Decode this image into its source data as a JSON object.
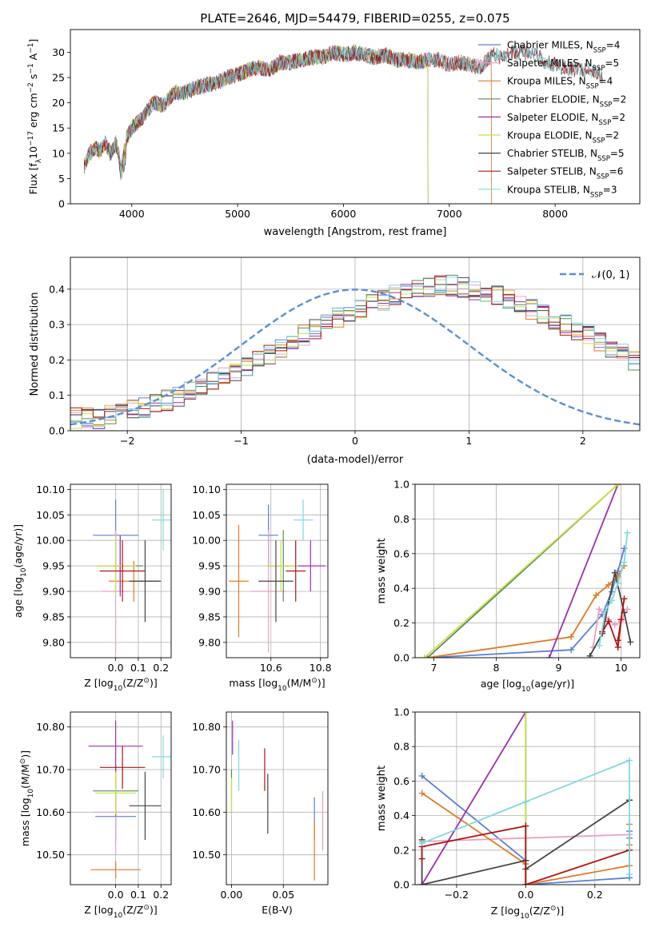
{
  "colors": {
    "chabrier_miles": "#5b7fd6",
    "salpeter_miles": "#e8a0c8",
    "kroupa_miles": "#e07b22",
    "chabrier_elodie": "#5a8a5a",
    "salpeter_elodie": "#9b30b0",
    "kroupa_elodie": "#c9e04a",
    "chabrier_stelib": "#444444",
    "salpeter_stelib": "#b01414",
    "kroupa_stelib": "#7fd8e0",
    "gaussian": "#5b8fd6",
    "grid": "#b0b0b0"
  },
  "chart_data": [
    {
      "id": "spectrum",
      "type": "line",
      "title": "PLATE=2646, MJD=54479, FIBERID=0255, z=0.075",
      "xlabel": "wavelength [Angstrom, rest frame]",
      "ylabel_parts": [
        "Flux [f",
        "λ",
        "10",
        "−17",
        " erg cm",
        "−2",
        " s",
        "−1",
        " A",
        "−1",
        "]"
      ],
      "xlim": [
        3420,
        8800
      ],
      "ylim": [
        0,
        34.5
      ],
      "xticks": [
        4000,
        5000,
        6000,
        7000,
        8000
      ],
      "yticks": [
        0,
        5,
        10,
        15,
        20,
        25,
        30
      ],
      "x": [
        3550,
        3600,
        3650,
        3700,
        3750,
        3800,
        3850,
        3900,
        3950,
        4000,
        4100,
        4200,
        4300,
        4400,
        4500,
        4600,
        4700,
        4800,
        4900,
        5000,
        5100,
        5200,
        5300,
        5400,
        5500,
        5600,
        5700,
        5800,
        5900,
        6000,
        6100,
        6200,
        6300,
        6400,
        6500,
        6600,
        6700,
        6800,
        6900,
        7000,
        7100,
        7200,
        7300,
        7400,
        7500,
        7600,
        7700,
        7800,
        7900,
        8000,
        8100,
        8200,
        8300,
        8400,
        8450
      ],
      "y": [
        7.5,
        10,
        11,
        10.5,
        12,
        10,
        12,
        8,
        13,
        15,
        17,
        20,
        19.5,
        22,
        22,
        23,
        23.5,
        24,
        25,
        25.5,
        26.5,
        27,
        26.5,
        28,
        28,
        28.5,
        29,
        29,
        30,
        29.5,
        30,
        29.5,
        29,
        29.5,
        28.5,
        28.5,
        28,
        28.5,
        28.5,
        27.5,
        28,
        27.5,
        27,
        29.5,
        29,
        30,
        30,
        30,
        28,
        27.5,
        27,
        26.5,
        26.5,
        26,
        25
      ],
      "series": [
        {
          "name": "Chabrier MILES, N",
          "sub": "SSP",
          "tail": "=4",
          "color_key": "chabrier_miles",
          "xmax": 7400
        },
        {
          "name": "Salpeter MILES, N",
          "sub": "SSP",
          "tail": "=5",
          "color_key": "salpeter_miles",
          "xmax": 7400
        },
        {
          "name": "Kroupa MILES, N",
          "sub": "SSP",
          "tail": "=4",
          "color_key": "kroupa_miles",
          "xmax": 7400
        },
        {
          "name": "Chabrier ELODIE, N",
          "sub": "SSP",
          "tail": "=2",
          "color_key": "chabrier_elodie",
          "xmax": 6800
        },
        {
          "name": "Salpeter ELODIE, N",
          "sub": "SSP",
          "tail": "=2",
          "color_key": "salpeter_elodie",
          "xmax": 6800
        },
        {
          "name": "Kroupa ELODIE, N",
          "sub": "SSP",
          "tail": "=2",
          "color_key": "kroupa_elodie",
          "xmax": 6800
        },
        {
          "name": "Chabrier STELIB, N",
          "sub": "SSP",
          "tail": "=5",
          "color_key": "chabrier_stelib",
          "xmax": 8450
        },
        {
          "name": "Salpeter STELIB, N",
          "sub": "SSP",
          "tail": "=6",
          "color_key": "salpeter_stelib",
          "xmax": 8450
        },
        {
          "name": "Kroupa STELIB, N",
          "sub": "SSP",
          "tail": "=3",
          "color_key": "kroupa_stelib",
          "xmax": 8450
        }
      ],
      "grid": false,
      "legend": "right"
    },
    {
      "id": "residuals",
      "type": "histogram",
      "xlabel": "(data-model)/error",
      "ylabel": "Normed distribution",
      "xlim": [
        -2.5,
        2.5
      ],
      "ylim": [
        0,
        0.49
      ],
      "xticks": [
        -2,
        -1,
        0,
        1,
        2
      ],
      "yticks": [
        0.0,
        0.1,
        0.2,
        0.3,
        0.4
      ],
      "bin_width": 0.1,
      "bins_from": -2.5,
      "values": [
        0.035,
        0.038,
        0.032,
        0.045,
        0.05,
        0.06,
        0.065,
        0.075,
        0.085,
        0.095,
        0.11,
        0.12,
        0.14,
        0.15,
        0.17,
        0.185,
        0.2,
        0.215,
        0.235,
        0.255,
        0.27,
        0.285,
        0.3,
        0.32,
        0.33,
        0.345,
        0.36,
        0.37,
        0.385,
        0.395,
        0.4,
        0.405,
        0.41,
        0.41,
        0.405,
        0.4,
        0.395,
        0.385,
        0.375,
        0.36,
        0.345,
        0.33,
        0.315,
        0.3,
        0.285,
        0.27,
        0.255,
        0.235,
        0.22,
        0.2
      ],
      "legend_label": "𝒩(0, 1)",
      "grid": true,
      "legend": "upper right"
    },
    {
      "id": "age_vs_z",
      "type": "scatter",
      "xlabel_parts": [
        "Z [log",
        "10",
        "(Z/Z",
        "⊙",
        ")]"
      ],
      "ylabel_parts": [
        "age  [log",
        "10",
        "(age/yr)]"
      ],
      "xlim": [
        -0.2,
        0.245
      ],
      "ylim": [
        9.77,
        10.11
      ],
      "xticks": [
        0.0,
        0.1,
        0.2
      ],
      "yticks": [
        9.8,
        9.85,
        9.9,
        9.95,
        10.0,
        10.05,
        10.1
      ],
      "points": [
        {
          "color_key": "chabrier_miles",
          "x": 0.0,
          "y": 10.01,
          "xerr": 0.1,
          "yerr": 0.07
        },
        {
          "color_key": "salpeter_miles",
          "x": 0.0,
          "y": 9.9,
          "xerr": 0.06,
          "yerr": 0.12
        },
        {
          "color_key": "kroupa_miles",
          "x": 0.08,
          "y": 9.92,
          "xerr": 0.11,
          "yerr": 0.04
        },
        {
          "color_key": "chabrier_elodie",
          "x": 0.02,
          "y": 9.95,
          "xerr": 0.1,
          "yerr": 0.05
        },
        {
          "color_key": "salpeter_elodie",
          "x": 0.02,
          "y": 9.95,
          "xerr": 0.04,
          "yerr": 0.06
        },
        {
          "color_key": "kroupa_elodie",
          "x": 0.0,
          "y": 9.95,
          "xerr": 0.09,
          "yerr": 0.06
        },
        {
          "color_key": "chabrier_stelib",
          "x": 0.13,
          "y": 9.92,
          "xerr": 0.07,
          "yerr": 0.08
        },
        {
          "color_key": "salpeter_stelib",
          "x": 0.03,
          "y": 9.94,
          "xerr": 0.1,
          "yerr": 0.06
        },
        {
          "color_key": "kroupa_stelib",
          "x": 0.21,
          "y": 10.04,
          "xerr": 0.05,
          "yerr": 0.06
        }
      ],
      "grid": true
    },
    {
      "id": "age_vs_mass",
      "type": "scatter",
      "xlabel_parts": [
        "mass [log",
        "10",
        "(M/M",
        "⊙",
        ")]"
      ],
      "ylabel_parts": [],
      "xlim": [
        10.42,
        10.83
      ],
      "ylim": [
        9.77,
        10.11
      ],
      "xticks": [
        10.6,
        10.8
      ],
      "yticks": [
        9.8,
        9.85,
        9.9,
        9.95,
        10.0,
        10.05,
        10.1
      ],
      "points": [
        {
          "color_key": "chabrier_miles",
          "x": 10.59,
          "y": 10.01,
          "xerr": 0.04,
          "yerr": 0.06
        },
        {
          "color_key": "salpeter_miles",
          "x": 10.59,
          "y": 9.9,
          "xerr": 0.07,
          "yerr": 0.12
        },
        {
          "color_key": "kroupa_miles",
          "x": 10.47,
          "y": 9.92,
          "xerr": 0.04,
          "yerr": 0.11
        },
        {
          "color_key": "chabrier_elodie",
          "x": 10.65,
          "y": 9.95,
          "xerr": 0.06,
          "yerr": 0.07
        },
        {
          "color_key": "salpeter_elodie",
          "x": 10.76,
          "y": 9.95,
          "xerr": 0.06,
          "yerr": 0.05
        },
        {
          "color_key": "kroupa_elodie",
          "x": 10.64,
          "y": 9.95,
          "xerr": 0.07,
          "yerr": 0.05
        },
        {
          "color_key": "chabrier_stelib",
          "x": 10.62,
          "y": 9.92,
          "xerr": 0.07,
          "yerr": 0.08
        },
        {
          "color_key": "salpeter_stelib",
          "x": 10.7,
          "y": 9.94,
          "xerr": 0.04,
          "yerr": 0.06
        },
        {
          "color_key": "kroupa_stelib",
          "x": 10.73,
          "y": 10.04,
          "xerr": 0.04,
          "yerr": 0.04
        }
      ],
      "grid": true
    },
    {
      "id": "massweight_vs_age",
      "type": "line",
      "xlabel_parts": [
        "age  [log",
        "10",
        "(age/yr)]"
      ],
      "ylabel": "mass weight",
      "xlim": [
        6.7,
        10.3
      ],
      "ylim": [
        0,
        1.0
      ],
      "xticks": [
        7,
        8,
        9,
        10
      ],
      "yticks": [
        0.0,
        0.2,
        0.4,
        0.6,
        0.8,
        1.0
      ],
      "series": [
        {
          "color_key": "chabrier_miles",
          "x": [
            6.9,
            9.2,
            9.7,
            9.85,
            9.95,
            10.05
          ],
          "y": [
            0.0,
            0.045,
            0.25,
            0.38,
            0.5,
            0.63
          ]
        },
        {
          "color_key": "salpeter_miles",
          "x": [
            9.55,
            9.65,
            9.8,
            9.9,
            10.0,
            10.1
          ],
          "y": [
            0.06,
            0.28,
            0.22,
            0.19,
            0.21,
            0.28
          ]
        },
        {
          "color_key": "kroupa_miles",
          "x": [
            6.9,
            9.2,
            9.6,
            9.8,
            9.95,
            10.05
          ],
          "y": [
            0.0,
            0.12,
            0.36,
            0.42,
            0.47,
            0.53
          ]
        },
        {
          "color_key": "chabrier_elodie",
          "x": [
            6.9,
            9.95
          ],
          "y": [
            0.0,
            1.0
          ]
        },
        {
          "color_key": "salpeter_elodie",
          "x": [
            8.85,
            9.95
          ],
          "y": [
            0.0,
            1.0
          ]
        },
        {
          "color_key": "kroupa_elodie",
          "x": [
            6.85,
            9.95
          ],
          "y": [
            0.0,
            1.0
          ]
        },
        {
          "color_key": "chabrier_stelib",
          "x": [
            9.5,
            9.7,
            9.9,
            10.05,
            10.15
          ],
          "y": [
            0.01,
            0.14,
            0.49,
            0.26,
            0.09
          ]
        },
        {
          "color_key": "salpeter_stelib",
          "x": [
            9.7,
            9.8,
            9.95,
            10.0,
            10.05,
            9.95
          ],
          "y": [
            0.15,
            0.21,
            0.06,
            0.22,
            0.34,
            0.1
          ]
        },
        {
          "color_key": "kroupa_stelib",
          "x": [
            9.65,
            9.75,
            9.85,
            9.95,
            10.05,
            10.1
          ],
          "y": [
            0.07,
            0.27,
            0.33,
            0.43,
            0.55,
            0.72
          ]
        }
      ],
      "grid": true
    },
    {
      "id": "mass_vs_z",
      "type": "scatter",
      "xlabel_parts": [
        "Z [log",
        "10",
        "(Z/Z",
        "⊙",
        ")]"
      ],
      "ylabel_parts": [
        "mass [log",
        "10",
        "(M/M",
        "⊙",
        ")]"
      ],
      "xlim": [
        -0.2,
        0.245
      ],
      "ylim": [
        10.43,
        10.835
      ],
      "xticks": [
        0.0,
        0.1,
        0.2
      ],
      "yticks": [
        10.5,
        10.6,
        10.7,
        10.8
      ],
      "points": [
        {
          "color_key": "chabrier_miles",
          "x": 0.0,
          "y": 10.59,
          "xerr": 0.09,
          "yerr": 0.06
        },
        {
          "color_key": "salpeter_miles",
          "x": 0.0,
          "y": 10.6,
          "xerr": 0.1,
          "yerr": 0.1
        },
        {
          "color_key": "kroupa_miles",
          "x": 0.0,
          "y": 10.465,
          "xerr": 0.11,
          "yerr": 0.02
        },
        {
          "color_key": "chabrier_elodie",
          "x": 0.0,
          "y": 10.65,
          "xerr": 0.1,
          "yerr": 0.06
        },
        {
          "color_key": "salpeter_elodie",
          "x": 0.0,
          "y": 10.755,
          "xerr": 0.12,
          "yerr": 0.06
        },
        {
          "color_key": "kroupa_elodie",
          "x": 0.0,
          "y": 10.645,
          "xerr": 0.09,
          "yerr": 0.05
        },
        {
          "color_key": "chabrier_stelib",
          "x": 0.13,
          "y": 10.615,
          "xerr": 0.07,
          "yerr": 0.08
        },
        {
          "color_key": "salpeter_stelib",
          "x": 0.03,
          "y": 10.705,
          "xerr": 0.1,
          "yerr": 0.05
        },
        {
          "color_key": "kroupa_stelib",
          "x": 0.21,
          "y": 10.73,
          "xerr": 0.05,
          "yerr": 0.05
        }
      ],
      "grid": true
    },
    {
      "id": "mass_vs_ebv",
      "type": "scatter",
      "xlabel": "E(B-V)",
      "ylabel_parts": [],
      "xlim": [
        -0.005,
        0.093
      ],
      "ylim": [
        10.43,
        10.835
      ],
      "xticks": [
        0.0,
        0.05
      ],
      "xticklabels": [
        "0.00",
        "0.05"
      ],
      "yticks": [
        10.5,
        10.6,
        10.7,
        10.8
      ],
      "points": [
        {
          "color_key": "chabrier_miles",
          "x": 0.08,
          "y": 10.585,
          "xerr": 0,
          "yerr": 0.05
        },
        {
          "color_key": "salpeter_miles",
          "x": 0.088,
          "y": 10.58,
          "xerr": 0,
          "yerr": 0.07
        },
        {
          "color_key": "kroupa_miles",
          "x": 0.08,
          "y": 10.51,
          "xerr": 0,
          "yerr": 0.07
        },
        {
          "color_key": "chabrier_elodie",
          "x": 0.0,
          "y": 10.65,
          "xerr": 0,
          "yerr": 0.05
        },
        {
          "color_key": "salpeter_elodie",
          "x": 0.001,
          "y": 10.775,
          "xerr": 0,
          "yerr": 0.04
        },
        {
          "color_key": "kroupa_elodie",
          "x": 0.0,
          "y": 10.64,
          "xerr": 0,
          "yerr": 0.04
        },
        {
          "color_key": "chabrier_stelib",
          "x": 0.035,
          "y": 10.62,
          "xerr": 0,
          "yerr": 0.07
        },
        {
          "color_key": "salpeter_stelib",
          "x": 0.032,
          "y": 10.7,
          "xerr": 0,
          "yerr": 0.05
        },
        {
          "color_key": "kroupa_stelib",
          "x": 0.007,
          "y": 10.71,
          "xerr": 0,
          "yerr": 0.06
        }
      ],
      "grid": true
    },
    {
      "id": "massweight_vs_z",
      "type": "line",
      "xlabel_parts": [
        "Z [log",
        "10",
        "(Z/Z",
        "⊙",
        ")]"
      ],
      "ylabel": "mass weight",
      "xlim": [
        -0.32,
        0.33
      ],
      "ylim": [
        0,
        1.0
      ],
      "xticks": [
        -0.2,
        0.0,
        0.2
      ],
      "yticks": [
        0.0,
        0.2,
        0.4,
        0.6,
        0.8,
        1.0
      ],
      "series": [
        {
          "color_key": "chabrier_miles",
          "x": [
            -0.3,
            0.0,
            0.0,
            0.3,
            0.3,
            0.3
          ],
          "y": [
            0.63,
            0.14,
            0.0,
            0.04,
            0.27,
            0.31
          ]
        },
        {
          "color_key": "salpeter_miles",
          "x": [
            -0.3,
            0.0,
            0.3
          ],
          "y": [
            0.25,
            0.27,
            0.29
          ]
        },
        {
          "color_key": "kroupa_miles",
          "x": [
            -0.3,
            0.0,
            0.0,
            0.3,
            0.3,
            0.3
          ],
          "y": [
            0.53,
            0.12,
            0.0,
            0.11,
            0.23,
            0.35
          ]
        },
        {
          "color_key": "chabrier_elodie",
          "x": [
            0.0,
            0.0
          ],
          "y": [
            0.0,
            1.0
          ]
        },
        {
          "color_key": "salpeter_elodie",
          "x": [
            -0.3,
            0.0
          ],
          "y": [
            0.0,
            1.0
          ]
        },
        {
          "color_key": "kroupa_elodie",
          "x": [
            0.0,
            0.0
          ],
          "y": [
            0.0,
            1.0
          ]
        },
        {
          "color_key": "chabrier_stelib",
          "x": [
            -0.3,
            -0.3,
            0.0,
            0.0,
            0.3,
            0.3
          ],
          "y": [
            0.26,
            0.0,
            0.14,
            0.09,
            0.49,
            0.49
          ]
        },
        {
          "color_key": "salpeter_stelib",
          "x": [
            -0.3,
            -0.3,
            0.0,
            0.0,
            0.3,
            0.3
          ],
          "y": [
            0.15,
            0.22,
            0.34,
            0.0,
            0.2,
            0.2
          ]
        },
        {
          "color_key": "kroupa_stelib",
          "x": [
            -0.3,
            0.0,
            0.3,
            0.3
          ],
          "y": [
            0.24,
            0.48,
            0.72,
            0.06
          ]
        }
      ],
      "grid": true
    }
  ]
}
